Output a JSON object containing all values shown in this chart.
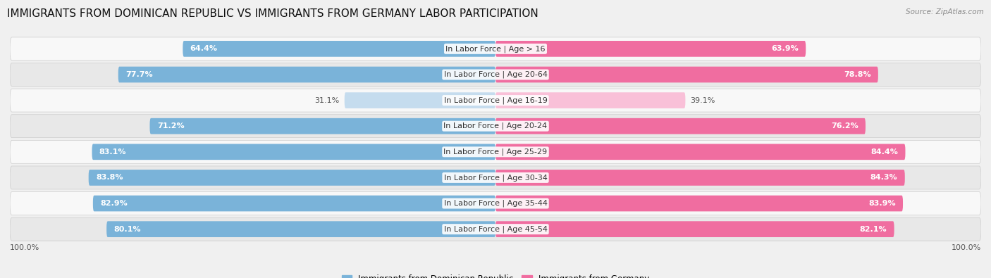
{
  "title": "IMMIGRANTS FROM DOMINICAN REPUBLIC VS IMMIGRANTS FROM GERMANY LABOR PARTICIPATION",
  "source": "Source: ZipAtlas.com",
  "categories": [
    "In Labor Force | Age > 16",
    "In Labor Force | Age 20-64",
    "In Labor Force | Age 16-19",
    "In Labor Force | Age 20-24",
    "In Labor Force | Age 25-29",
    "In Labor Force | Age 30-34",
    "In Labor Force | Age 35-44",
    "In Labor Force | Age 45-54"
  ],
  "dominican_values": [
    64.4,
    77.7,
    31.1,
    71.2,
    83.1,
    83.8,
    82.9,
    80.1
  ],
  "germany_values": [
    63.9,
    78.8,
    39.1,
    76.2,
    84.4,
    84.3,
    83.9,
    82.1
  ],
  "dominican_color": "#7ab3d9",
  "dominican_color_light": "#c5dcee",
  "germany_color": "#f06da0",
  "germany_color_light": "#f9c0d8",
  "max_value": 100.0,
  "bg_color": "#f0f0f0",
  "row_bg_light": "#f8f8f8",
  "row_bg_dark": "#e8e8e8",
  "title_fontsize": 11,
  "label_fontsize": 8,
  "value_fontsize": 8,
  "legend_fontsize": 8.5
}
